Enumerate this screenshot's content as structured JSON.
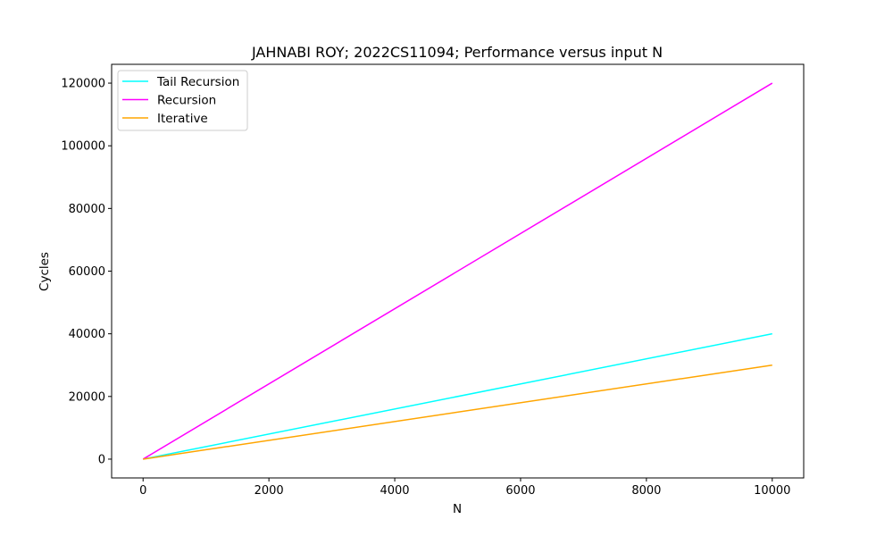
{
  "chart_data": {
    "type": "line",
    "title": "JAHNABI ROY; 2022CS11094; Performance versus input N",
    "xlabel": "N",
    "ylabel": "Cycles",
    "xlim": [
      -500,
      10500
    ],
    "ylim": [
      -6000,
      126000
    ],
    "x_ticks": [
      0,
      2000,
      4000,
      6000,
      8000,
      10000
    ],
    "y_ticks": [
      0,
      20000,
      40000,
      60000,
      80000,
      100000,
      120000
    ],
    "x_tick_labels": [
      "0",
      "2000",
      "4000",
      "6000",
      "8000",
      "10000"
    ],
    "y_tick_labels": [
      "0",
      "20000",
      "40000",
      "60000",
      "80000",
      "100000",
      "120000"
    ],
    "grid": false,
    "legend_position": "top-left",
    "series": [
      {
        "name": "Tail Recursion",
        "color": "#00ffff",
        "x": [
          0,
          10000
        ],
        "y": [
          0,
          40000
        ]
      },
      {
        "name": "Recursion",
        "color": "#ff00ff",
        "x": [
          0,
          10000
        ],
        "y": [
          0,
          120000
        ]
      },
      {
        "name": "Iterative",
        "color": "#ffa500",
        "x": [
          0,
          10000
        ],
        "y": [
          0,
          30000
        ]
      }
    ]
  }
}
